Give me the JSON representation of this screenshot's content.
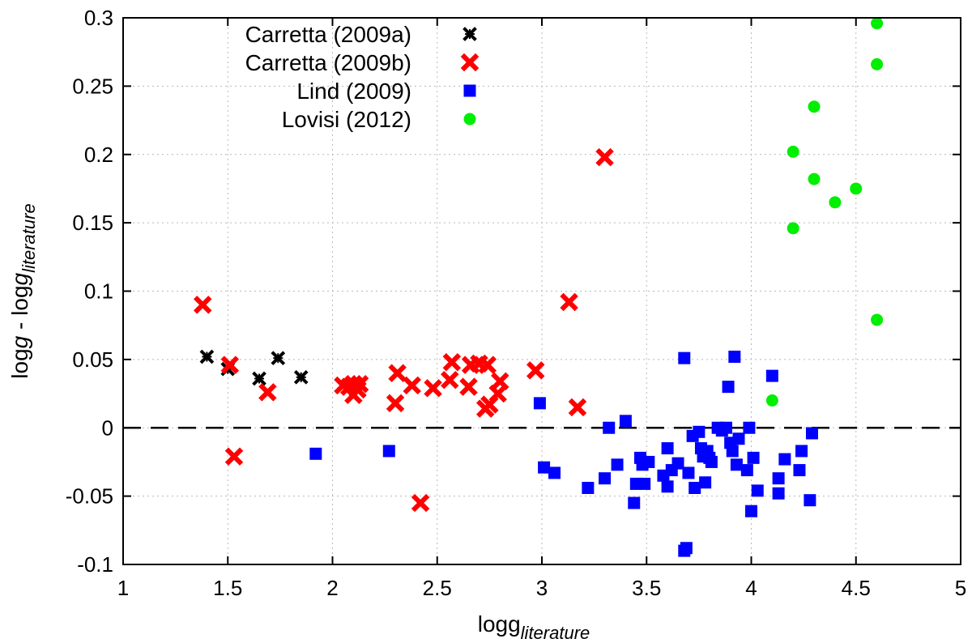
{
  "chart_data": {
    "type": "scatter",
    "title": "",
    "xlabel": {
      "main": "logg",
      "sub": "literature"
    },
    "ylabel": {
      "main_a": "log",
      "italic_a": "g",
      "mid": " - log",
      "italic_b": "g",
      "sub": "literature"
    },
    "xlim": [
      1,
      5
    ],
    "ylim": [
      -0.1,
      0.3
    ],
    "xticks": [
      1,
      1.5,
      2,
      2.5,
      3,
      3.5,
      4,
      4.5,
      5
    ],
    "xtick_labels": [
      "1",
      "1.5",
      "2",
      "2.5",
      "3",
      "3.5",
      "4",
      "4.5",
      "5"
    ],
    "yticks": [
      -0.1,
      -0.05,
      0,
      0.05,
      0.1,
      0.15,
      0.2,
      0.25,
      0.3
    ],
    "ytick_labels": [
      "-0.1",
      "-0.05",
      "0",
      "0.05",
      "0.1",
      "0.15",
      "0.2",
      "0.25",
      "0.3"
    ],
    "grid": true,
    "reference_line": {
      "y": 0,
      "style": "dashed"
    },
    "legend_position": "top-left",
    "series": [
      {
        "name": "Carretta (2009a)",
        "marker": "x",
        "color": "#000000",
        "points": [
          [
            1.4,
            0.052
          ],
          [
            1.5,
            0.043
          ],
          [
            1.65,
            0.036
          ],
          [
            1.74,
            0.051
          ],
          [
            1.85,
            0.037
          ]
        ]
      },
      {
        "name": "Carretta (2009b)",
        "marker": "x-bold",
        "color": "#ff0000",
        "points": [
          [
            1.38,
            0.09
          ],
          [
            1.51,
            0.046
          ],
          [
            1.53,
            -0.021
          ],
          [
            1.69,
            0.026
          ],
          [
            2.05,
            0.031
          ],
          [
            2.08,
            0.03
          ],
          [
            2.1,
            0.032
          ],
          [
            2.1,
            0.024
          ],
          [
            2.12,
            0.028
          ],
          [
            2.13,
            0.032
          ],
          [
            2.3,
            0.018
          ],
          [
            2.31,
            0.04
          ],
          [
            2.38,
            0.031
          ],
          [
            2.42,
            -0.055
          ],
          [
            2.48,
            0.029
          ],
          [
            2.56,
            0.035
          ],
          [
            2.57,
            0.048
          ],
          [
            2.65,
            0.03
          ],
          [
            2.66,
            0.046
          ],
          [
            2.7,
            0.047
          ],
          [
            2.74,
            0.046
          ],
          [
            2.73,
            0.014
          ],
          [
            2.75,
            0.017
          ],
          [
            2.79,
            0.025
          ],
          [
            2.8,
            0.034
          ],
          [
            2.97,
            0.042
          ],
          [
            3.13,
            0.092
          ],
          [
            3.17,
            0.015
          ],
          [
            3.3,
            0.198
          ]
        ]
      },
      {
        "name": "Lind (2009)",
        "marker": "square",
        "color": "#0000ff",
        "points": [
          [
            1.92,
            -0.019
          ],
          [
            2.27,
            -0.017
          ],
          [
            2.99,
            0.018
          ],
          [
            3.01,
            -0.029
          ],
          [
            3.06,
            -0.033
          ],
          [
            3.22,
            -0.044
          ],
          [
            3.3,
            -0.037
          ],
          [
            3.32,
            0.0
          ],
          [
            3.36,
            -0.027
          ],
          [
            3.4,
            0.005
          ],
          [
            3.44,
            -0.055
          ],
          [
            3.45,
            -0.041
          ],
          [
            3.47,
            -0.022
          ],
          [
            3.48,
            -0.027
          ],
          [
            3.49,
            -0.041
          ],
          [
            3.51,
            -0.025
          ],
          [
            3.58,
            -0.035
          ],
          [
            3.6,
            -0.043
          ],
          [
            3.6,
            -0.015
          ],
          [
            3.62,
            -0.031
          ],
          [
            3.65,
            -0.026
          ],
          [
            3.68,
            -0.09
          ],
          [
            3.68,
            0.051
          ],
          [
            3.69,
            -0.088
          ],
          [
            3.7,
            -0.033
          ],
          [
            3.72,
            -0.006
          ],
          [
            3.73,
            -0.044
          ],
          [
            3.75,
            -0.003
          ],
          [
            3.76,
            -0.015
          ],
          [
            3.77,
            -0.021
          ],
          [
            3.78,
            -0.04
          ],
          [
            3.79,
            -0.017
          ],
          [
            3.8,
            -0.022
          ],
          [
            3.81,
            -0.025
          ],
          [
            3.84,
            0.0
          ],
          [
            3.86,
            -0.002
          ],
          [
            3.88,
            0.0
          ],
          [
            3.89,
            0.03
          ],
          [
            3.9,
            -0.011
          ],
          [
            3.91,
            -0.017
          ],
          [
            3.92,
            0.052
          ],
          [
            3.93,
            -0.027
          ],
          [
            3.94,
            -0.008
          ],
          [
            3.98,
            -0.031
          ],
          [
            3.99,
            0.0
          ],
          [
            4.0,
            -0.061
          ],
          [
            4.01,
            -0.022
          ],
          [
            4.03,
            -0.046
          ],
          [
            4.1,
            0.038
          ],
          [
            4.13,
            -0.037
          ],
          [
            4.13,
            -0.048
          ],
          [
            4.16,
            -0.023
          ],
          [
            4.23,
            -0.031
          ],
          [
            4.24,
            -0.017
          ],
          [
            4.28,
            -0.053
          ],
          [
            4.29,
            -0.004
          ]
        ]
      },
      {
        "name": "Lovisi (2012)",
        "marker": "circle",
        "color": "#00ee00",
        "points": [
          [
            4.1,
            0.02
          ],
          [
            4.2,
            0.202
          ],
          [
            4.2,
            0.146
          ],
          [
            4.3,
            0.235
          ],
          [
            4.3,
            0.182
          ],
          [
            4.4,
            0.165
          ],
          [
            4.5,
            0.175
          ],
          [
            4.6,
            0.296
          ],
          [
            4.6,
            0.266
          ],
          [
            4.6,
            0.079
          ]
        ]
      }
    ]
  }
}
